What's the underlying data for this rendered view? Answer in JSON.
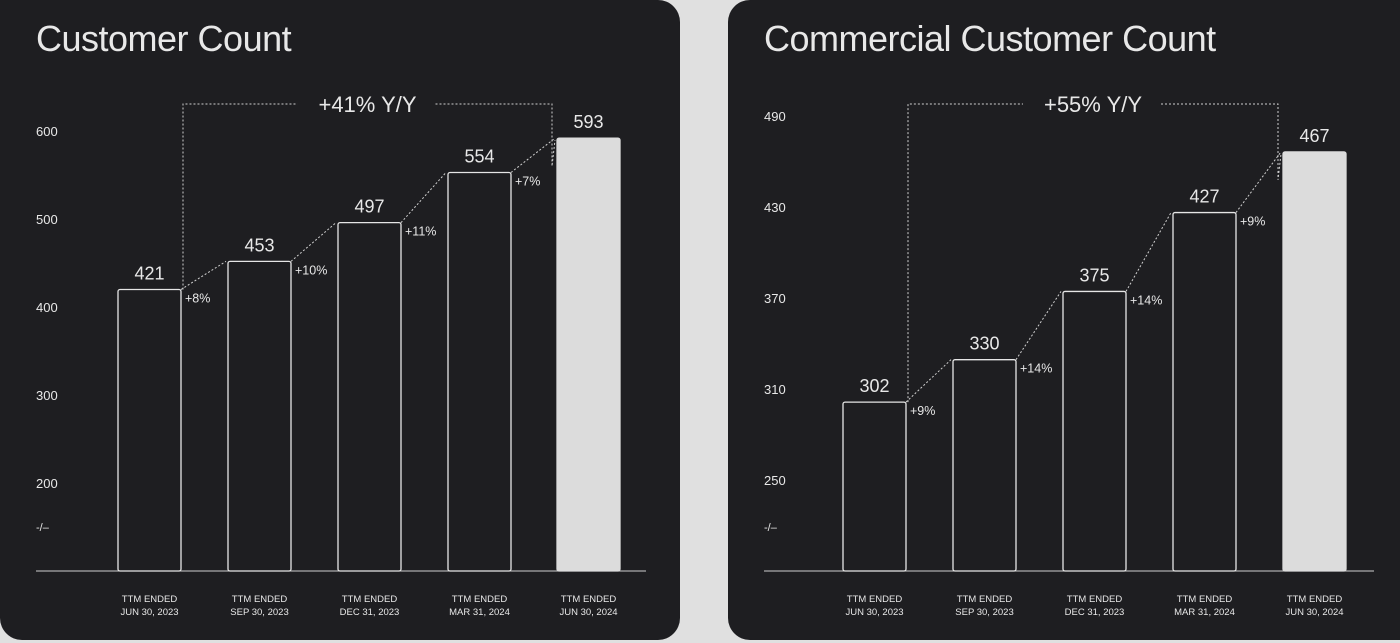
{
  "colors": {
    "background": "#e0e0e0",
    "panel": "#1e1e21",
    "text": "#e8e8e8",
    "highlight_bar": "#dcdcdc"
  },
  "chart_data": [
    {
      "type": "bar",
      "title": "Customer Count",
      "categories": [
        [
          "TTM ENDED",
          "JUN 30, 2023"
        ],
        [
          "TTM ENDED",
          "SEP 30, 2023"
        ],
        [
          "TTM ENDED",
          "DEC 31, 2023"
        ],
        [
          "TTM ENDED",
          "MAR 31, 2024"
        ],
        [
          "TTM ENDED",
          "JUN 30, 2024"
        ]
      ],
      "values": [
        421,
        453,
        497,
        554,
        593
      ],
      "growth_labels": [
        "+8%",
        "+10%",
        "+11%",
        "+7%"
      ],
      "yoy_label": "+41% Y/Y",
      "yticks": [
        200,
        300,
        400,
        500,
        600
      ],
      "axis_break": "-/–",
      "ylim": [
        150,
        615
      ],
      "highlight_index": 4
    },
    {
      "type": "bar",
      "title": "Commercial Customer Count",
      "categories": [
        [
          "TTM ENDED",
          "JUN 30, 2023"
        ],
        [
          "TTM ENDED",
          "SEP 30, 2023"
        ],
        [
          "TTM ENDED",
          "DEC 31, 2023"
        ],
        [
          "TTM ENDED",
          "MAR 31, 2024"
        ],
        [
          "TTM ENDED",
          "JUN 30, 2024"
        ]
      ],
      "values": [
        302,
        330,
        375,
        427,
        467
      ],
      "growth_labels": [
        "+9%",
        "+14%",
        "+14%",
        "+9%"
      ],
      "yoy_label": "+55% Y/Y",
      "yticks": [
        250,
        310,
        370,
        430,
        490
      ],
      "axis_break": "-/–",
      "ylim": [
        200,
        500
      ],
      "highlight_index": 4
    }
  ]
}
